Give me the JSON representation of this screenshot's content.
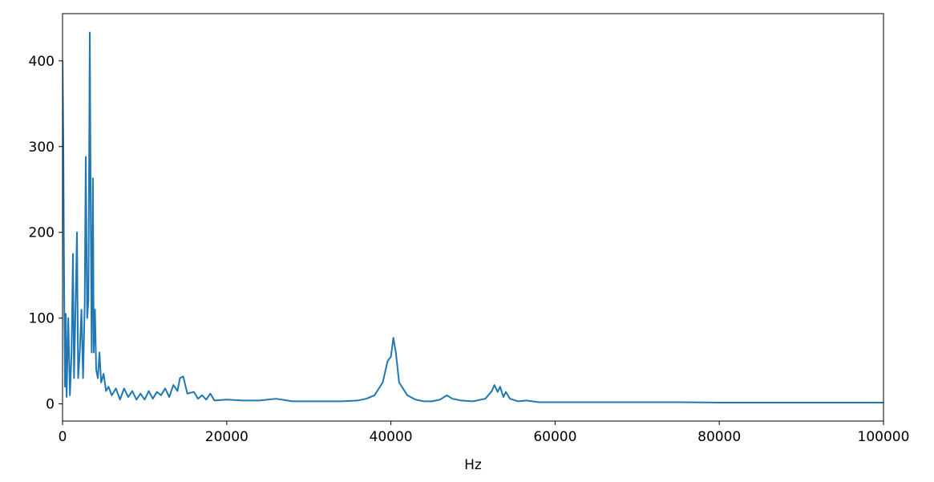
{
  "chart_data": {
    "type": "line",
    "xlabel": "Hz",
    "color": "#1f77b4",
    "grid": false,
    "x": [
      0,
      100,
      200,
      300,
      400,
      500,
      700,
      900,
      1100,
      1270,
      1400,
      1600,
      1760,
      1900,
      2100,
      2300,
      2500,
      2700,
      2830,
      3000,
      3150,
      3320,
      3450,
      3550,
      3700,
      3800,
      3950,
      4100,
      4300,
      4500,
      4700,
      5000,
      5300,
      5600,
      6000,
      6500,
      7000,
      7500,
      8000,
      8500,
      9000,
      9500,
      10000,
      10500,
      11000,
      11500,
      12000,
      12500,
      13000,
      13500,
      14000,
      14300,
      14700,
      15200,
      16000,
      16500,
      17000,
      17500,
      18000,
      18500,
      20000,
      22000,
      24000,
      26000,
      28000,
      30000,
      32000,
      34000,
      36000,
      37000,
      38000,
      39000,
      39600,
      40000,
      40300,
      40600,
      41000,
      42000,
      43000,
      44000,
      45000,
      46000,
      46800,
      47500,
      48500,
      50000,
      51500,
      52300,
      52600,
      53000,
      53300,
      53700,
      54000,
      54500,
      55500,
      56500,
      58000,
      60000,
      65000,
      70000,
      75000,
      80000,
      85000,
      90000,
      95000,
      100000
    ],
    "values": [
      400,
      300,
      130,
      20,
      105,
      8,
      100,
      10,
      60,
      175,
      30,
      120,
      200,
      30,
      60,
      110,
      30,
      115,
      288,
      100,
      120,
      433,
      200,
      60,
      263,
      60,
      110,
      40,
      30,
      60,
      25,
      35,
      15,
      20,
      10,
      18,
      5,
      18,
      8,
      15,
      5,
      12,
      5,
      15,
      6,
      14,
      10,
      18,
      8,
      22,
      15,
      30,
      32,
      12,
      14,
      6,
      10,
      5,
      12,
      4,
      5,
      4,
      4,
      6,
      3,
      3,
      3,
      3,
      4,
      6,
      10,
      25,
      50,
      55,
      77,
      60,
      25,
      10,
      5,
      3,
      3,
      5,
      10,
      6,
      4,
      3,
      6,
      15,
      22,
      14,
      20,
      8,
      14,
      6,
      3,
      4,
      2,
      2,
      2,
      2,
      2,
      1.5,
      1.5,
      1.5,
      1.5,
      1.5
    ],
    "xlim": [
      0,
      100000
    ],
    "ylim": [
      -20,
      455
    ],
    "xticks": [
      0,
      20000,
      40000,
      60000,
      80000,
      100000
    ],
    "yticks": [
      0,
      100,
      200,
      300,
      400
    ]
  }
}
